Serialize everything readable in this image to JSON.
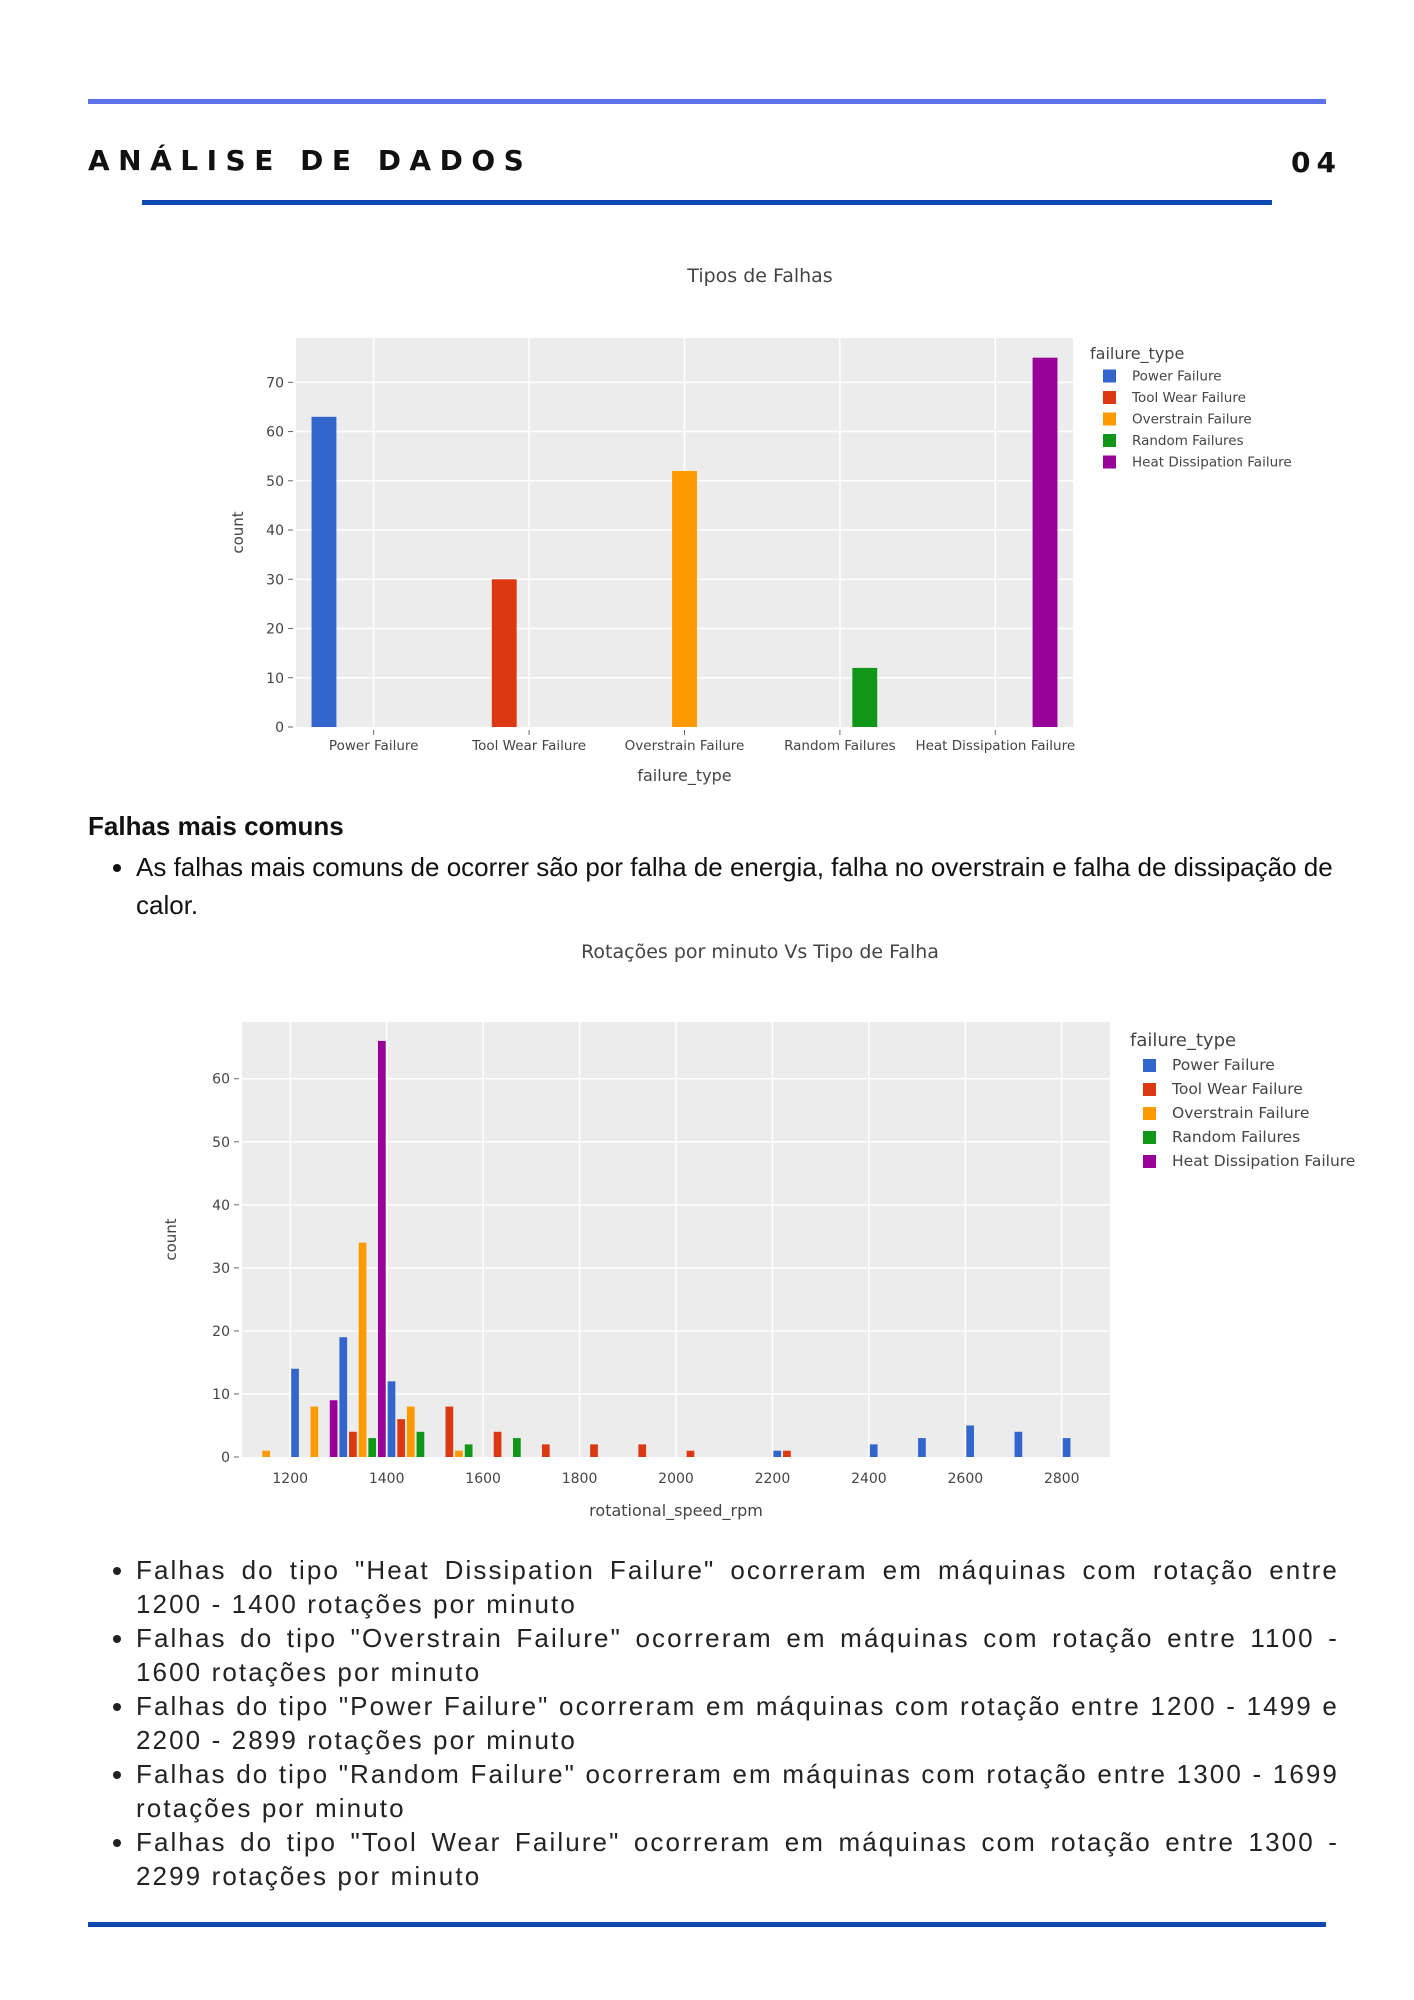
{
  "header": {
    "title": "ANÁLISE DE DADOS",
    "page_number": "04"
  },
  "colors": {
    "accent_top": "#5a73e8",
    "accent_dark": "#0d47b0",
    "power": "#3366cc",
    "tool_wear": "#dc3912",
    "overstrain": "#ff9900",
    "random": "#109618",
    "heat": "#990099",
    "plot_bg": "#ececec"
  },
  "chart_data": [
    {
      "type": "bar",
      "title": "Tipos de Falhas",
      "xlabel": "failure_type",
      "ylabel": "count",
      "ylim": [
        0,
        79
      ],
      "yticks": [
        0,
        10,
        20,
        30,
        40,
        50,
        60,
        70
      ],
      "grid": true,
      "legend_title": "failure_type",
      "legend_position": "right",
      "categories": [
        "Power Failure",
        "Tool Wear Failure",
        "Overstrain Failure",
        "Random Failures",
        "Heat Dissipation Failure"
      ],
      "series": [
        {
          "name": "Power Failure",
          "values": [
            63,
            0,
            0,
            0,
            0
          ]
        },
        {
          "name": "Tool Wear Failure",
          "values": [
            0,
            30,
            0,
            0,
            0
          ]
        },
        {
          "name": "Overstrain Failure",
          "values": [
            0,
            0,
            52,
            0,
            0
          ]
        },
        {
          "name": "Random Failures",
          "values": [
            0,
            0,
            0,
            12,
            0
          ]
        },
        {
          "name": "Heat Dissipation Failure",
          "values": [
            0,
            0,
            0,
            0,
            75
          ]
        }
      ]
    },
    {
      "type": "bar",
      "title": "Rotações por minuto Vs Tipo de Falha",
      "xlabel": "rotational_speed_rpm",
      "ylabel": "count",
      "xlim": [
        1100,
        2900
      ],
      "ylim": [
        0,
        69
      ],
      "xticks": [
        1200,
        1400,
        1600,
        1800,
        2000,
        2200,
        2400,
        2600,
        2800
      ],
      "yticks": [
        0,
        10,
        20,
        30,
        40,
        50,
        60
      ],
      "grid": true,
      "legend_title": "failure_type",
      "legend_position": "right",
      "bin_width": 100,
      "bins": [
        1100,
        1200,
        1300,
        1400,
        1500,
        1600,
        1700,
        1800,
        1900,
        2000,
        2100,
        2200,
        2300,
        2400,
        2500,
        2600,
        2700,
        2800
      ],
      "series": [
        {
          "name": "Power Failure",
          "values": [
            0,
            14,
            19,
            12,
            0,
            0,
            0,
            0,
            0,
            0,
            0,
            1,
            0,
            2,
            3,
            5,
            4,
            3
          ]
        },
        {
          "name": "Tool Wear Failure",
          "values": [
            0,
            0,
            4,
            6,
            8,
            4,
            2,
            2,
            2,
            1,
            0,
            1,
            0,
            0,
            0,
            0,
            0,
            0
          ]
        },
        {
          "name": "Overstrain Failure",
          "values": [
            1,
            8,
            34,
            8,
            1,
            0,
            0,
            0,
            0,
            0,
            0,
            0,
            0,
            0,
            0,
            0,
            0,
            0
          ]
        },
        {
          "name": "Random Failures",
          "values": [
            0,
            0,
            3,
            4,
            2,
            3,
            0,
            0,
            0,
            0,
            0,
            0,
            0,
            0,
            0,
            0,
            0,
            0
          ]
        },
        {
          "name": "Heat Dissipation Failure",
          "values": [
            0,
            9,
            66,
            0,
            0,
            0,
            0,
            0,
            0,
            0,
            0,
            0,
            0,
            0,
            0,
            0,
            0,
            0
          ]
        }
      ]
    }
  ],
  "section": {
    "heading": "Falhas mais comuns",
    "intro": "As falhas mais comuns de ocorrer são por falha de energia, falha no overstrain e falha de dissipação de calor."
  },
  "findings": [
    "Falhas do tipo \"Heat Dissipation Failure\" ocorreram em máquinas com rotação entre 1200 - 1400 rotações por minuto",
    "Falhas do tipo \"Overstrain Failure\" ocorreram em máquinas com rotação entre 1100 - 1600 rotações por minuto",
    "Falhas do tipo \"Power Failure\" ocorreram em máquinas com rotação entre 1200 - 1499 e 2200 - 2899 rotações por minuto",
    "Falhas do tipo \"Random Failure\" ocorreram em máquinas com rotação entre 1300 - 1699 rotações por minuto",
    "Falhas do tipo \"Tool Wear Failure\" ocorreram em máquinas com rotação entre 1300 - 2299 rotações por minuto"
  ]
}
